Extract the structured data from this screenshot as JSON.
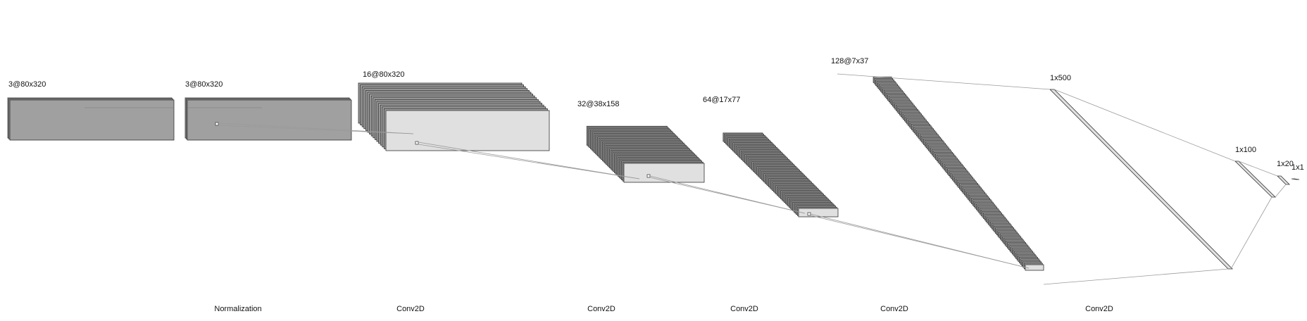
{
  "diagram": {
    "colors": {
      "map_fill_dark": "#a0a0a0",
      "map_fill_light": "#e0e0e0",
      "stroke": "#333333",
      "connector": "#9a9a9a"
    },
    "layers": [
      {
        "label": "3@80x320"
      },
      {
        "label": "3@80x320"
      },
      {
        "label": "16@80x320"
      },
      {
        "label": "32@38x158"
      },
      {
        "label": "64@17x77"
      },
      {
        "label": "128@7x37"
      },
      {
        "label": "1x500"
      },
      {
        "label": "1x100"
      },
      {
        "label": "1x20"
      },
      {
        "label": "1x1"
      }
    ],
    "operations": [
      {
        "label": "Normalization"
      },
      {
        "label": "Conv2D"
      },
      {
        "label": "Conv2D"
      },
      {
        "label": "Conv2D"
      },
      {
        "label": "Conv2D"
      },
      {
        "label": "Conv2D"
      }
    ]
  }
}
